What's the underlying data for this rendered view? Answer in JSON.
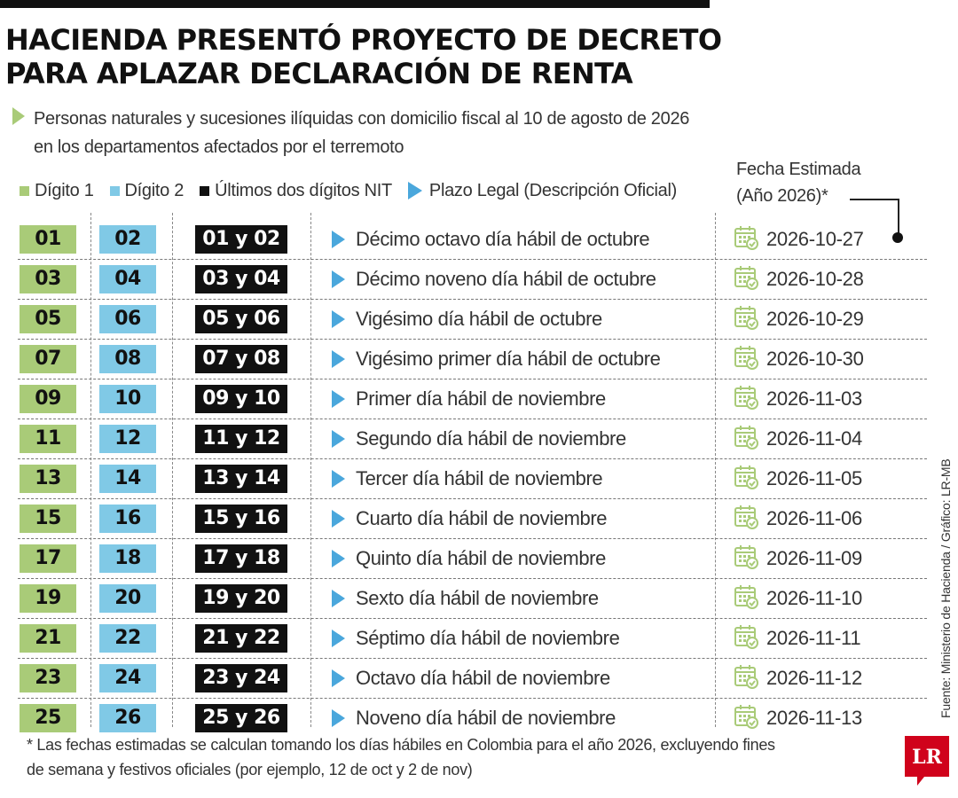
{
  "header": {
    "title_line1": "HACIENDA PRESENTÓ PROYECTO DE DECRETO",
    "title_line2": "PARA APLAZAR DECLARACIÓN DE RENTA",
    "subtitle_line1": "Personas naturales y sucesiones ilíquidas con domicilio fiscal al 10 de agosto de 2026",
    "subtitle_line2": "en los departamentos afectados por el terremoto"
  },
  "legend": {
    "digito1": "Dígito 1",
    "digito2": "Dígito 2",
    "nit": "Últimos dos dígitos NIT",
    "plazo": "Plazo Legal (Descripción Oficial)"
  },
  "fecha_header": {
    "line1": "Fecha Estimada",
    "line2": "(Año 2026)*"
  },
  "colors": {
    "digito1": "#a9cb78",
    "digito2": "#80c9e6",
    "nit": "#111111",
    "plazo": "#4aa7dc",
    "calendar_icon": "#a9cb78",
    "logo": "#d0021b"
  },
  "icons": {
    "date": "calendar-check-icon",
    "plazo": "triangle-right-icon"
  },
  "rows": [
    {
      "d1": "01",
      "d2": "02",
      "nit": "01 y 02",
      "plazo": "Décimo octavo día hábil de octubre",
      "fecha": "2026-10-27"
    },
    {
      "d1": "03",
      "d2": "04",
      "nit": "03 y 04",
      "plazo": "Décimo noveno día hábil de octubre",
      "fecha": "2026-10-28"
    },
    {
      "d1": "05",
      "d2": "06",
      "nit": "05 y 06",
      "plazo": "Vigésimo día hábil de octubre",
      "fecha": "2026-10-29"
    },
    {
      "d1": "07",
      "d2": "08",
      "nit": "07 y 08",
      "plazo": "Vigésimo primer día hábil de octubre",
      "fecha": "2026-10-30"
    },
    {
      "d1": "09",
      "d2": "10",
      "nit": "09 y 10",
      "plazo": "Primer día hábil de noviembre",
      "fecha": "2026-11-03"
    },
    {
      "d1": "11",
      "d2": "12",
      "nit": "11 y 12",
      "plazo": "Segundo día hábil de noviembre",
      "fecha": "2026-11-04"
    },
    {
      "d1": "13",
      "d2": "14",
      "nit": "13 y 14",
      "plazo": "Tercer día hábil de noviembre",
      "fecha": "2026-11-05"
    },
    {
      "d1": "15",
      "d2": "16",
      "nit": "15 y 16",
      "plazo": "Cuarto día hábil de noviembre",
      "fecha": "2026-11-06"
    },
    {
      "d1": "17",
      "d2": "18",
      "nit": "17 y 18",
      "plazo": "Quinto día hábil de noviembre",
      "fecha": "2026-11-09"
    },
    {
      "d1": "19",
      "d2": "20",
      "nit": "19 y 20",
      "plazo": "Sexto día hábil de noviembre",
      "fecha": "2026-11-10"
    },
    {
      "d1": "21",
      "d2": "22",
      "nit": "21 y 22",
      "plazo": "Séptimo día hábil de noviembre",
      "fecha": "2026-11-11"
    },
    {
      "d1": "23",
      "d2": "24",
      "nit": "23 y 24",
      "plazo": "Octavo día hábil de noviembre",
      "fecha": "2026-11-12"
    },
    {
      "d1": "25",
      "d2": "26",
      "nit": "25 y 26",
      "plazo": "Noveno día hábil de noviembre",
      "fecha": "2026-11-13"
    }
  ],
  "footnote": {
    "line1": "* Las fechas estimadas se calculan tomando los días hábiles en Colombia para el año 2026, excluyendo fines",
    "line2": "de semana y festivos oficiales (por ejemplo, 12 de oct y 2 de nov)"
  },
  "source": "Fuente: Ministerio de Hacienda / Gráfico: LR-MB",
  "logo": "LR"
}
